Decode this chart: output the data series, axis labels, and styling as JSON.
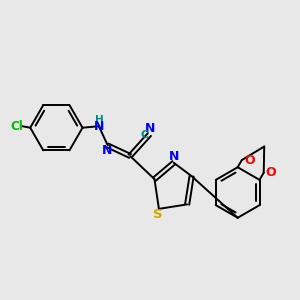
{
  "bg_color": "#e8e8e8",
  "bond_color": "#000000",
  "N_color": "#0000ff",
  "S_color": "#ccaa00",
  "O_color": "#ff0000",
  "Cl_color": "#00bb00",
  "C_color": "#008888",
  "fig_width": 3.0,
  "fig_height": 3.0,
  "dpi": 100,
  "xlim": [
    0,
    10
  ],
  "ylim": [
    0,
    10
  ]
}
